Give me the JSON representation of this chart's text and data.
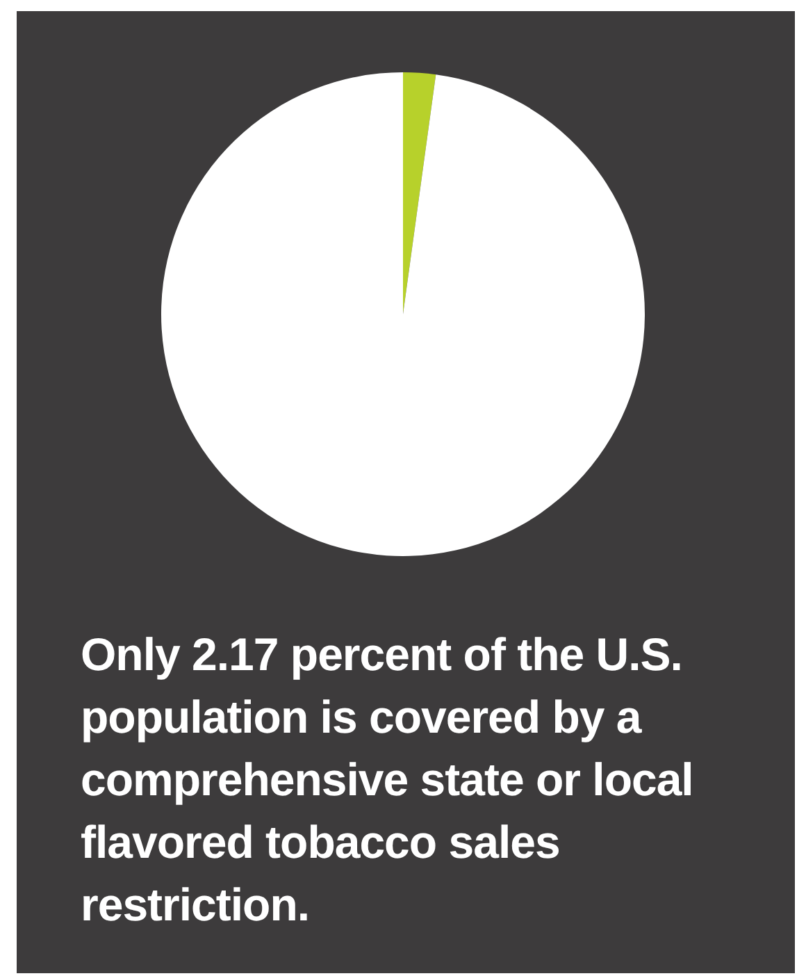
{
  "chart_data": {
    "type": "pie",
    "title": "Only 2.17 percent of the U.S. population is covered by a comprehensive state or local flavored tobacco sales restriction.",
    "categories": [
      null,
      null
    ],
    "values": [
      2.17,
      97.83
    ],
    "colors": [
      "#b7d12b",
      "#ffffff"
    ],
    "legend": false
  }
}
